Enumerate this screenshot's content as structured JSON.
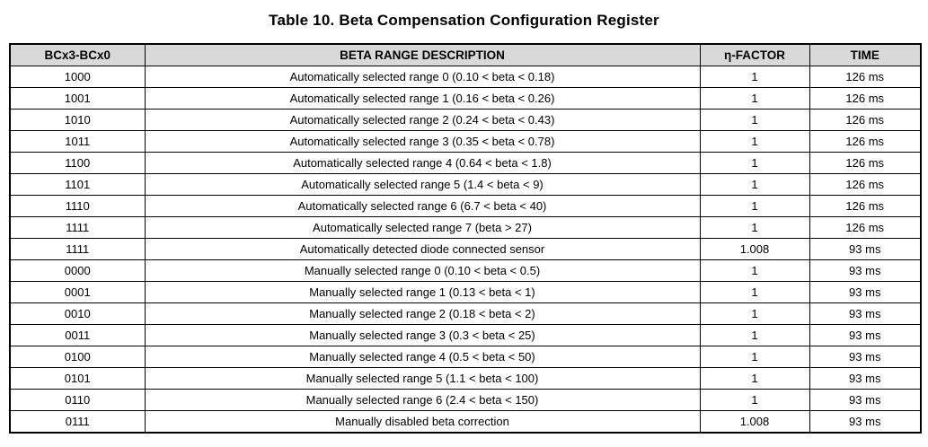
{
  "title": "Table 10. Beta Compensation Configuration Register",
  "colors": {
    "header_bg": "#d9d9d9",
    "border": "#000000",
    "text": "#000000",
    "page_bg": "#ffffff"
  },
  "table": {
    "headers": [
      "BCx3-BCx0",
      "BETA RANGE DESCRIPTION",
      "η-FACTOR",
      "TIME"
    ],
    "rows": [
      [
        "1000",
        "Automatically selected range 0 (0.10 < beta < 0.18)",
        "1",
        "126 ms"
      ],
      [
        "1001",
        "Automatically selected range 1 (0.16 < beta < 0.26)",
        "1",
        "126 ms"
      ],
      [
        "1010",
        "Automatically selected range 2 (0.24 < beta < 0.43)",
        "1",
        "126 ms"
      ],
      [
        "1011",
        "Automatically selected range 3 (0.35 < beta < 0.78)",
        "1",
        "126 ms"
      ],
      [
        "1100",
        "Automatically selected range 4 (0.64 < beta < 1.8)",
        "1",
        "126 ms"
      ],
      [
        "1101",
        "Automatically selected range 5 (1.4 < beta < 9)",
        "1",
        "126 ms"
      ],
      [
        "1110",
        "Automatically selected range 6 (6.7 < beta < 40)",
        "1",
        "126 ms"
      ],
      [
        "1111",
        "Automatically selected range 7 (beta > 27)",
        "1",
        "126 ms"
      ],
      [
        "1111",
        "Automatically detected diode connected sensor",
        "1.008",
        "93 ms"
      ],
      [
        "0000",
        "Manually selected range 0 (0.10 < beta < 0.5)",
        "1",
        "93 ms"
      ],
      [
        "0001",
        "Manually selected range 1 (0.13 < beta < 1)",
        "1",
        "93 ms"
      ],
      [
        "0010",
        "Manually selected range 2 (0.18 < beta < 2)",
        "1",
        "93 ms"
      ],
      [
        "0011",
        "Manually selected range 3 (0.3 < beta < 25)",
        "1",
        "93 ms"
      ],
      [
        "0100",
        "Manually selected range 4 (0.5 < beta < 50)",
        "1",
        "93 ms"
      ],
      [
        "0101",
        "Manually selected range 5 (1.1 < beta < 100)",
        "1",
        "93 ms"
      ],
      [
        "0110",
        "Manually selected range 6 (2.4 < beta < 150)",
        "1",
        "93 ms"
      ],
      [
        "0111",
        "Manually disabled beta correction",
        "1.008",
        "93 ms"
      ]
    ]
  }
}
